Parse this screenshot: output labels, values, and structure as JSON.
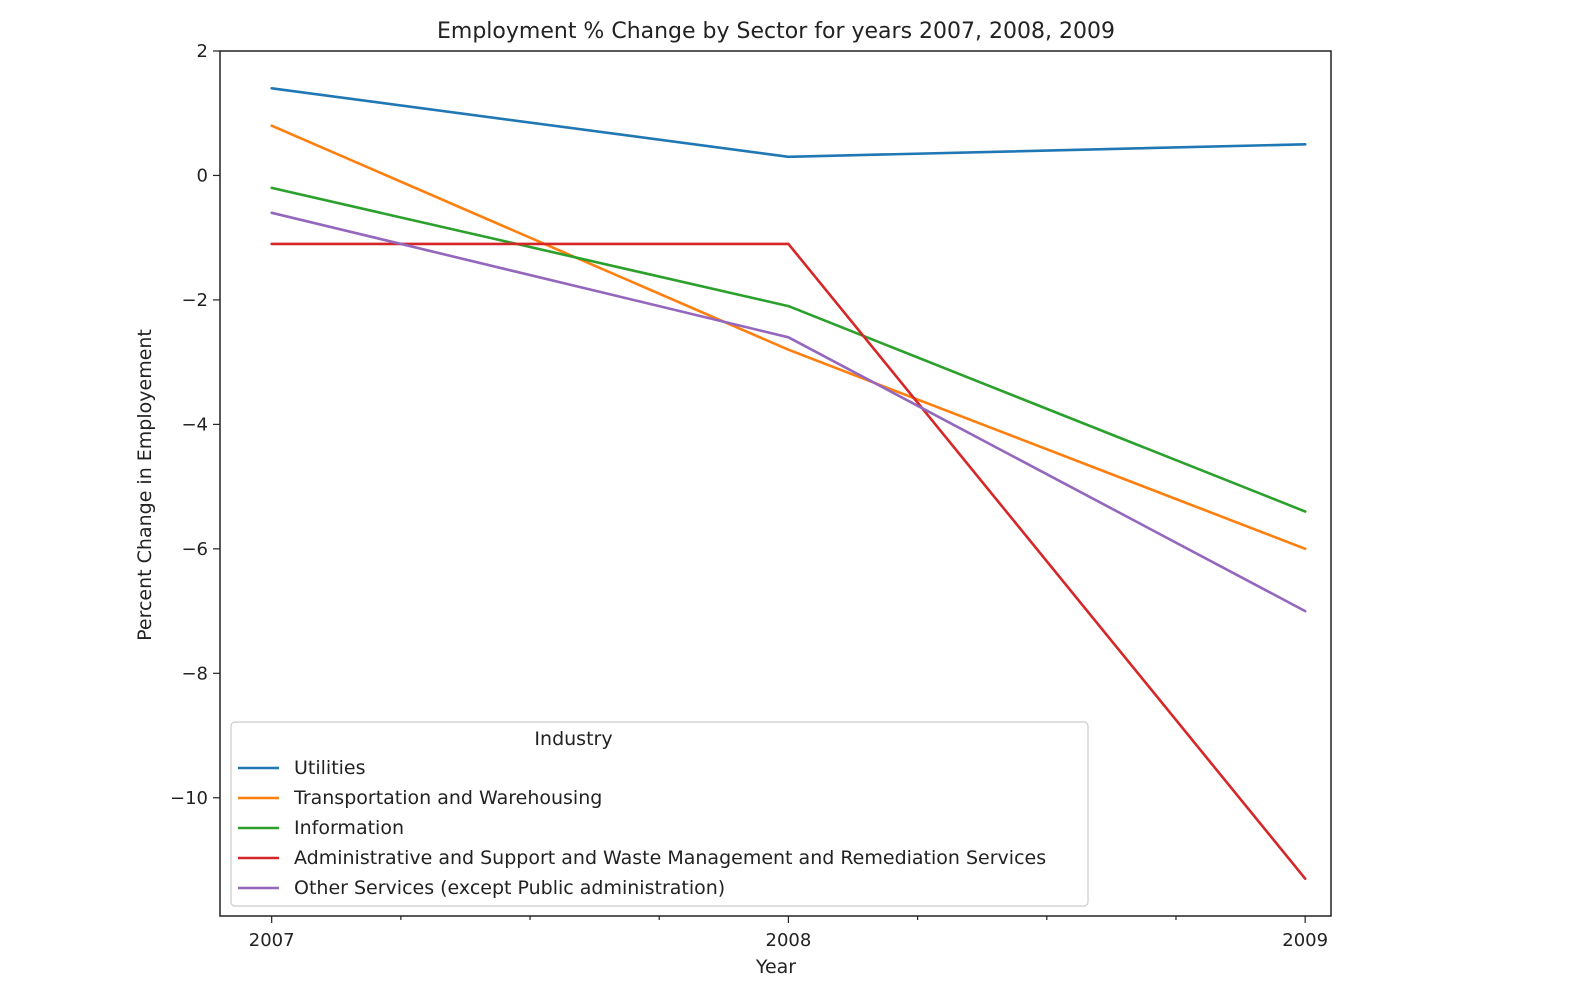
{
  "chart_data": {
    "type": "line",
    "title": "Employment % Change by Sector for years 2007, 2008, 2009",
    "xlabel": "Year",
    "ylabel": "Percent Change in Employement",
    "x": [
      2007,
      2008,
      2009
    ],
    "x_tick_labels": [
      "2007",
      "2008",
      "2009"
    ],
    "y_ticks": [
      2,
      0,
      -2,
      -4,
      -6,
      -8,
      -10
    ],
    "y_tick_labels": [
      "2",
      "0",
      "−2",
      "−4",
      "−6",
      "−8",
      "−10"
    ],
    "xlim": [
      2006.9,
      2009.05
    ],
    "ylim": [
      -11.9,
      2.0
    ],
    "grid": false,
    "legend": {
      "title": "Industry",
      "placement": "lower-left"
    },
    "series": [
      {
        "name": "Utilities",
        "color": "#1f77b4",
        "values": [
          1.4,
          0.3,
          0.5
        ]
      },
      {
        "name": "Transportation and Warehousing",
        "color": "#ff7f0e",
        "values": [
          0.8,
          -2.8,
          -6.0
        ]
      },
      {
        "name": "Information",
        "color": "#2ca02c",
        "values": [
          -0.2,
          -2.1,
          -5.4
        ]
      },
      {
        "name": "Administrative and Support and Waste Management and Remediation Services",
        "color": "#d62728",
        "values": [
          -1.1,
          -1.1,
          -11.3
        ]
      },
      {
        "name": "Other Services (except Public administration)",
        "color": "#9467bd",
        "values": [
          -0.6,
          -2.6,
          -7.0
        ]
      }
    ]
  }
}
